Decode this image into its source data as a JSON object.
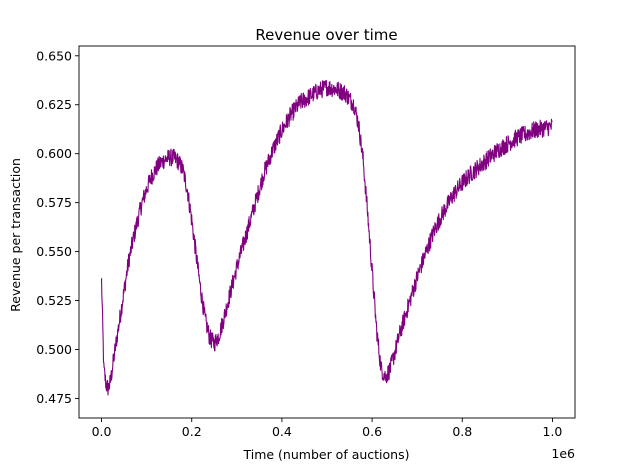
{
  "chart_data": {
    "type": "line",
    "title": "Revenue over time",
    "xlabel": "Time (number of auctions)",
    "ylabel": "Revenue per transaction",
    "x_offset_label": "1e6",
    "xlim": [
      -0.05,
      1.05
    ],
    "ylim": [
      0.465,
      0.655
    ],
    "x_ticks": [
      0.0,
      0.2,
      0.4,
      0.6,
      0.8,
      1.0
    ],
    "x_tick_labels": [
      "0.0",
      "0.2",
      "0.4",
      "0.6",
      "0.8",
      "1.0"
    ],
    "y_ticks": [
      0.475,
      0.5,
      0.525,
      0.55,
      0.575,
      0.6,
      0.625,
      0.65
    ],
    "y_tick_labels": [
      "0.475",
      "0.500",
      "0.525",
      "0.550",
      "0.575",
      "0.600",
      "0.625",
      "0.650"
    ],
    "grid": false,
    "series": [
      {
        "color": "#800080",
        "x": [
          0.0,
          0.005,
          0.01,
          0.015,
          0.02,
          0.03,
          0.04,
          0.05,
          0.06,
          0.07,
          0.08,
          0.09,
          0.1,
          0.11,
          0.12,
          0.13,
          0.14,
          0.15,
          0.16,
          0.17,
          0.18,
          0.19,
          0.2,
          0.21,
          0.22,
          0.23,
          0.24,
          0.25,
          0.26,
          0.27,
          0.28,
          0.3,
          0.32,
          0.34,
          0.36,
          0.38,
          0.4,
          0.42,
          0.44,
          0.46,
          0.48,
          0.5,
          0.52,
          0.54,
          0.56,
          0.57,
          0.58,
          0.59,
          0.6,
          0.61,
          0.62,
          0.63,
          0.64,
          0.65,
          0.66,
          0.68,
          0.7,
          0.72,
          0.74,
          0.76,
          0.78,
          0.8,
          0.82,
          0.84,
          0.86,
          0.88,
          0.9,
          0.92,
          0.94,
          0.96,
          0.98,
          1.0
        ],
        "y": [
          0.535,
          0.49,
          0.482,
          0.48,
          0.484,
          0.5,
          0.515,
          0.53,
          0.545,
          0.556,
          0.566,
          0.575,
          0.582,
          0.588,
          0.592,
          0.595,
          0.597,
          0.598,
          0.598,
          0.596,
          0.592,
          0.582,
          0.566,
          0.548,
          0.53,
          0.515,
          0.506,
          0.503,
          0.507,
          0.515,
          0.524,
          0.542,
          0.558,
          0.574,
          0.59,
          0.602,
          0.612,
          0.62,
          0.626,
          0.629,
          0.632,
          0.634,
          0.633,
          0.631,
          0.625,
          0.615,
          0.597,
          0.57,
          0.54,
          0.51,
          0.49,
          0.486,
          0.49,
          0.498,
          0.507,
          0.522,
          0.537,
          0.55,
          0.562,
          0.571,
          0.579,
          0.585,
          0.59,
          0.594,
          0.598,
          0.602,
          0.605,
          0.608,
          0.61,
          0.612,
          0.613,
          0.614
        ]
      }
    ]
  }
}
